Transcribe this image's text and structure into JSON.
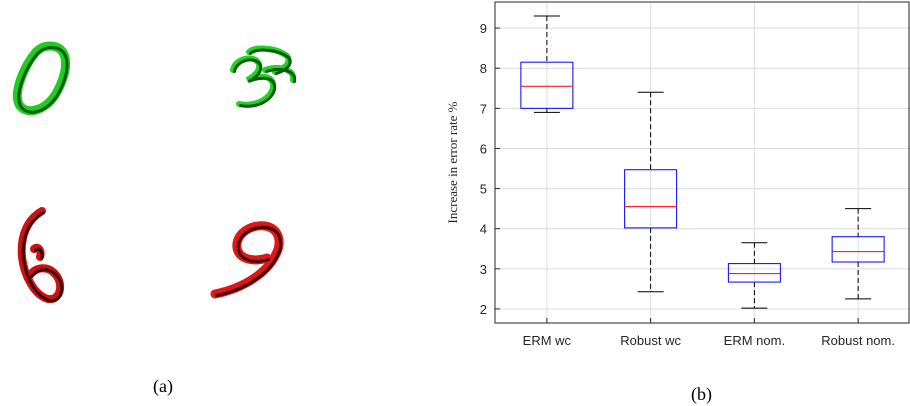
{
  "panel_a": {
    "caption": "(a)",
    "digits": [
      {
        "glyph": "0",
        "color": "#1fcc1f",
        "stroke": "#0a5a0a"
      },
      {
        "glyph": "3",
        "color": "#22d422",
        "stroke": "#0a5a0a"
      },
      {
        "glyph": "6",
        "color": "#d01010",
        "stroke": "#3a0000"
      },
      {
        "glyph": "9",
        "color": "#e01515",
        "stroke": "#3a0000"
      }
    ]
  },
  "panel_b": {
    "caption": "(b)"
  },
  "chart_data": {
    "type": "box",
    "title": "",
    "xlabel": "",
    "ylabel": "Increase in error rate %",
    "ylim": [
      1.65,
      9.65
    ],
    "yticks": [
      2,
      3,
      4,
      5,
      6,
      7,
      8,
      9
    ],
    "grid": true,
    "categories": [
      "ERM wc",
      "Robust wc",
      "ERM nom.",
      "Robust nom."
    ],
    "boxes": [
      {
        "whisker_low": 6.9,
        "q1": 7.0,
        "median": 7.55,
        "q3": 8.15,
        "whisker_high": 9.3
      },
      {
        "whisker_low": 2.43,
        "q1": 4.02,
        "median": 4.55,
        "q3": 5.47,
        "whisker_high": 7.4
      },
      {
        "whisker_low": 2.02,
        "q1": 2.67,
        "median": 2.88,
        "q3": 3.13,
        "whisker_high": 3.65
      },
      {
        "whisker_low": 2.25,
        "q1": 3.17,
        "median": 3.43,
        "q3": 3.8,
        "whisker_high": 4.5
      }
    ],
    "colors": {
      "box": "#0000ff",
      "median": "#ff0000",
      "whisker": "#000000",
      "grid": "#dcdcdc",
      "axis": "#262626"
    }
  }
}
